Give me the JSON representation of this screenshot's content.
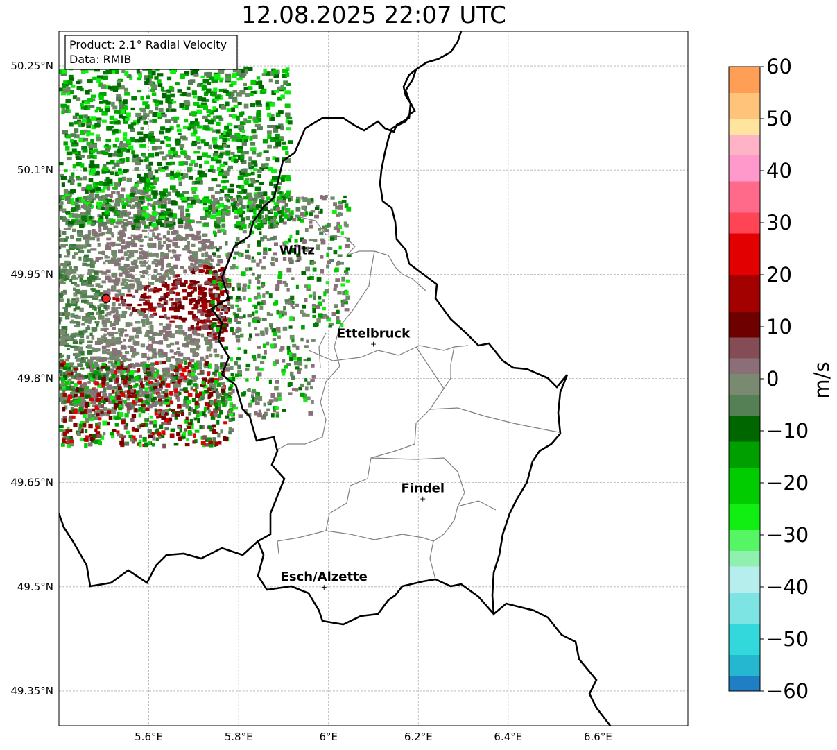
{
  "title": "12.08.2025 22:07 UTC",
  "info_box": {
    "line1": "Product: 2.1° Radial Velocity",
    "line2": "Data: RMIB"
  },
  "map": {
    "lon_range": [
      5.4,
      6.8
    ],
    "lat_range": [
      49.3,
      50.3
    ],
    "grid": true,
    "lon_ticks": [
      {
        "value": 5.6,
        "label": "5.6°E"
      },
      {
        "value": 5.8,
        "label": "5.8°E"
      },
      {
        "value": 6.0,
        "label": "6°E"
      },
      {
        "value": 6.2,
        "label": "6.2°E"
      },
      {
        "value": 6.4,
        "label": "6.4°E"
      },
      {
        "value": 6.6,
        "label": "6.6°E"
      }
    ],
    "lat_ticks": [
      {
        "value": 50.25,
        "label": "50.25°N"
      },
      {
        "value": 50.1,
        "label": "50.1°N"
      },
      {
        "value": 49.95,
        "label": "49.95°N"
      },
      {
        "value": 49.8,
        "label": "49.8°N"
      },
      {
        "value": 49.65,
        "label": "49.65°N"
      },
      {
        "value": 49.5,
        "label": "49.5°N"
      },
      {
        "value": 49.35,
        "label": "49.35°N"
      }
    ],
    "radar_site": {
      "lon": 5.505,
      "lat": 49.915
    },
    "cities": [
      {
        "name": "Wiltz",
        "lon": 5.93,
        "lat": 49.97
      },
      {
        "name": "Ettelbruck",
        "lon": 6.1,
        "lat": 49.85
      },
      {
        "name": "Findel",
        "lon": 6.21,
        "lat": 49.627
      },
      {
        "name": "Esch/Alzette",
        "lon": 5.99,
        "lat": 49.5
      }
    ]
  },
  "colorbar": {
    "min": -60,
    "max": 60,
    "unit": "m/s",
    "ticks": [
      {
        "value": 60,
        "label": "60"
      },
      {
        "value": 50,
        "label": "50"
      },
      {
        "value": 40,
        "label": "40"
      },
      {
        "value": 30,
        "label": "30"
      },
      {
        "value": 20,
        "label": "20"
      },
      {
        "value": 10,
        "label": "10"
      },
      {
        "value": 0,
        "label": "0"
      },
      {
        "value": -10,
        "label": "−10"
      },
      {
        "value": -20,
        "label": "−20"
      },
      {
        "value": -30,
        "label": "−30"
      },
      {
        "value": -40,
        "label": "−40"
      },
      {
        "value": -50,
        "label": "−50"
      },
      {
        "value": -60,
        "label": "−60"
      }
    ],
    "stops": [
      {
        "from": -60,
        "to": -57,
        "color": "#1f7fc4"
      },
      {
        "from": -57,
        "to": -53,
        "color": "#25b6d0"
      },
      {
        "from": -53,
        "to": -47,
        "color": "#33d8dc"
      },
      {
        "from": -47,
        "to": -41,
        "color": "#7ee3e3"
      },
      {
        "from": -41,
        "to": -36,
        "color": "#b6eeee"
      },
      {
        "from": -36,
        "to": -33,
        "color": "#8ff0b0"
      },
      {
        "from": -33,
        "to": -29,
        "color": "#55f566"
      },
      {
        "from": -29,
        "to": -24,
        "color": "#11ee11"
      },
      {
        "from": -24,
        "to": -17,
        "color": "#00cc00"
      },
      {
        "from": -17,
        "to": -12,
        "color": "#009f00"
      },
      {
        "from": -12,
        "to": -7,
        "color": "#006600"
      },
      {
        "from": -7,
        "to": -3,
        "color": "#557f55"
      },
      {
        "from": -3,
        "to": 1,
        "color": "#7a8a70"
      },
      {
        "from": 1,
        "to": 4,
        "color": "#8a6f78"
      },
      {
        "from": 4,
        "to": 8,
        "color": "#844c55"
      },
      {
        "from": 8,
        "to": 13,
        "color": "#6e0000"
      },
      {
        "from": 13,
        "to": 20,
        "color": "#a30000"
      },
      {
        "from": 20,
        "to": 28,
        "color": "#e30000"
      },
      {
        "from": 28,
        "to": 32,
        "color": "#ff4455"
      },
      {
        "from": 32,
        "to": 38,
        "color": "#ff6a8a"
      },
      {
        "from": 38,
        "to": 43,
        "color": "#ff99cc"
      },
      {
        "from": 43,
        "to": 47,
        "color": "#ffb3c6"
      },
      {
        "from": 47,
        "to": 50,
        "color": "#ffe4a0"
      },
      {
        "from": 50,
        "to": 55,
        "color": "#ffc47a"
      },
      {
        "from": 55,
        "to": 60,
        "color": "#ff9f55"
      }
    ]
  }
}
